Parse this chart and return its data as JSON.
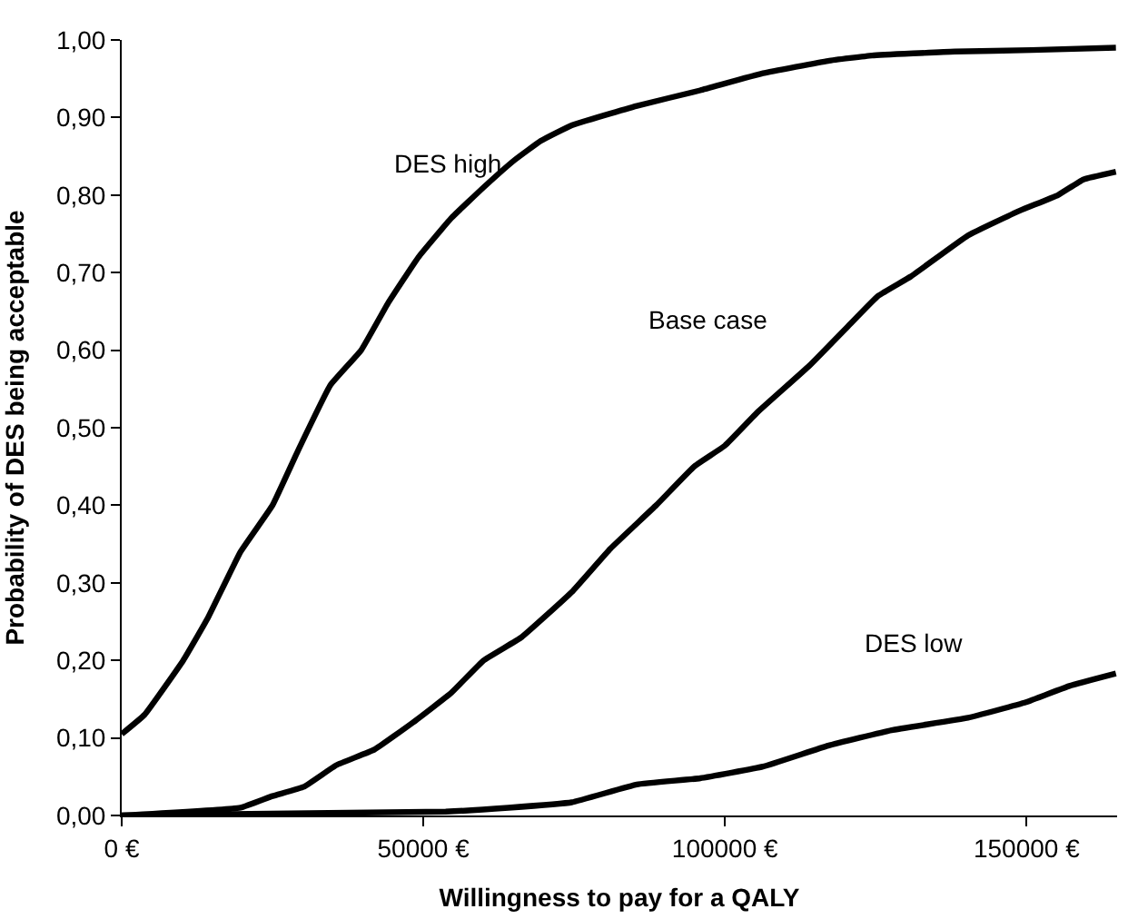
{
  "chart_data": {
    "type": "line",
    "xlabel": "Willingness to pay for a QALY",
    "ylabel": "Probability of DES being acceptable",
    "xlim": [
      0,
      165000
    ],
    "ylim": [
      0,
      1
    ],
    "xticks": [
      {
        "value": 0,
        "label": "0 €"
      },
      {
        "value": 50000,
        "label": "50000 €"
      },
      {
        "value": 100000,
        "label": "100000 €"
      },
      {
        "value": 150000,
        "label": "150000 €"
      }
    ],
    "yticks": [
      {
        "value": 0,
        "label": "0,00"
      },
      {
        "value": 0.1,
        "label": "0,10"
      },
      {
        "value": 0.2,
        "label": "0,20"
      },
      {
        "value": 0.3,
        "label": "0,30"
      },
      {
        "value": 0.4,
        "label": "0,40"
      },
      {
        "value": 0.5,
        "label": "0,50"
      },
      {
        "value": 0.6,
        "label": "0,60"
      },
      {
        "value": 0.7,
        "label": "0,70"
      },
      {
        "value": 0.8,
        "label": "0,80"
      },
      {
        "value": 0.9,
        "label": "0,90"
      },
      {
        "value": 1,
        "label": "1,00"
      }
    ],
    "grid": false,
    "legend": false,
    "marker": "none",
    "line_style": "solid",
    "series": [
      {
        "name": "DES high",
        "color": "#000000",
        "x": [
          0,
          3800,
          10200,
          14300,
          19700,
          25000,
          29200,
          34600,
          39700,
          44100,
          49200,
          54600,
          60000,
          65100,
          69500,
          74600,
          85400,
          95900,
          106300,
          117100,
          124400,
          138100,
          150800,
          164800
        ],
        "values": [
          0.105,
          0.13,
          0.2,
          0.255,
          0.34,
          0.4,
          0.47,
          0.555,
          0.6,
          0.66,
          0.72,
          0.77,
          0.81,
          0.845,
          0.87,
          0.89,
          0.915,
          0.935,
          0.957,
          0.973,
          0.98,
          0.985,
          0.987,
          0.99
        ]
      },
      {
        "name": "Base case",
        "color": "#000000",
        "x": [
          0,
          19700,
          25000,
          30200,
          35600,
          41900,
          48300,
          54600,
          60000,
          66300,
          74600,
          81000,
          88600,
          94900,
          100000,
          105400,
          114000,
          120300,
          125400,
          130800,
          140300,
          148900,
          155200,
          159400,
          164800
        ],
        "values": [
          0,
          0.01,
          0.025,
          0.037,
          0.065,
          0.085,
          0.12,
          0.158,
          0.2,
          0.23,
          0.288,
          0.344,
          0.4,
          0.45,
          0.477,
          0.52,
          0.58,
          0.63,
          0.67,
          0.695,
          0.748,
          0.78,
          0.8,
          0.82,
          0.83
        ]
      },
      {
        "name": "DES low",
        "color": "#000000",
        "x": [
          0,
          53700,
          64100,
          74600,
          85400,
          95900,
          106300,
          117100,
          127600,
          140300,
          149900,
          157100,
          164800
        ],
        "values": [
          0,
          0.005,
          0.01,
          0.017,
          0.04,
          0.048,
          0.063,
          0.09,
          0.11,
          0.126,
          0.146,
          0.167,
          0.183
        ]
      }
    ]
  }
}
